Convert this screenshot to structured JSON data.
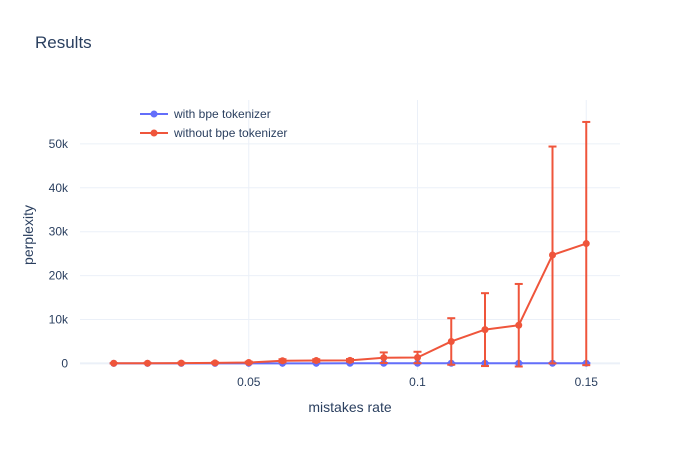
{
  "chart_data": {
    "type": "line",
    "title": "Results",
    "xlabel": "mistakes rate",
    "ylabel": "perplexity",
    "xlim": [
      0.0,
      0.16
    ],
    "ylim": [
      -1500,
      60000
    ],
    "xticks": [
      0.05,
      0.1,
      0.15
    ],
    "xtick_labels": [
      "0.05",
      "0.1",
      "0.15"
    ],
    "yticks": [
      0,
      10000,
      20000,
      30000,
      40000,
      50000
    ],
    "ytick_labels": [
      "0",
      "10k",
      "20k",
      "30k",
      "40k",
      "50k"
    ],
    "grid": true,
    "legend_position": "top-left",
    "series": [
      {
        "name": "with bpe tokenizer",
        "color": "#636efa",
        "x": [
          0.01,
          0.02,
          0.03,
          0.04,
          0.05,
          0.06,
          0.07,
          0.08,
          0.09,
          0.1,
          0.11,
          0.12,
          0.13,
          0.14,
          0.15
        ],
        "y": [
          10,
          12,
          14,
          16,
          18,
          20,
          22,
          25,
          28,
          30,
          33,
          36,
          40,
          45,
          50
        ],
        "error": [
          5,
          5,
          5,
          5,
          5,
          5,
          5,
          5,
          5,
          5,
          5,
          5,
          5,
          5,
          5
        ]
      },
      {
        "name": "without bpe tokenizer",
        "color": "#ef553b",
        "x": [
          0.01,
          0.02,
          0.03,
          0.04,
          0.05,
          0.06,
          0.07,
          0.08,
          0.09,
          0.1,
          0.11,
          0.12,
          0.13,
          0.14,
          0.15
        ],
        "y": [
          30,
          50,
          80,
          120,
          200,
          600,
          650,
          700,
          1300,
          1350,
          5000,
          7700,
          8700,
          24700,
          27300
        ],
        "error": [
          50,
          80,
          100,
          150,
          200,
          350,
          300,
          300,
          1200,
          1300,
          5300,
          8300,
          9400,
          24700,
          27700
        ]
      }
    ]
  }
}
